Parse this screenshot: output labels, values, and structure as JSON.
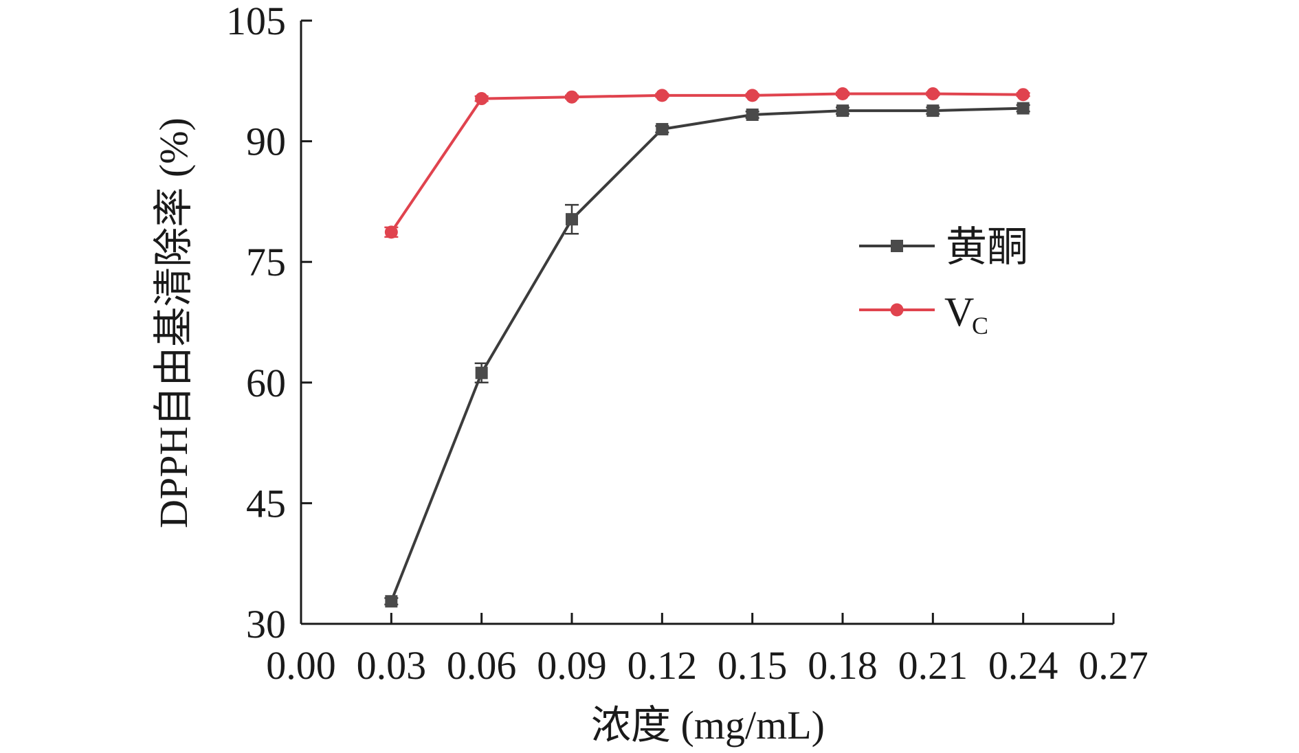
{
  "chart_data": {
    "type": "line",
    "title": "",
    "xlabel": "浓度 (mg/mL)",
    "ylabel": "DPPH自由基清除率 (%)",
    "xlim": [
      0.0,
      0.27
    ],
    "ylim": [
      30,
      105
    ],
    "xticks": [
      "0.00",
      "0.03",
      "0.06",
      "0.09",
      "0.12",
      "0.15",
      "0.18",
      "0.21",
      "0.24",
      "0.27"
    ],
    "yticks": [
      "30",
      "45",
      "60",
      "75",
      "90",
      "105"
    ],
    "x": [
      0.03,
      0.06,
      0.09,
      0.12,
      0.15,
      0.18,
      0.21,
      0.24
    ],
    "grid": false,
    "legend_position": "right",
    "series": [
      {
        "name": "黄酮",
        "marker": "square",
        "color": "#3c3c3c",
        "values": [
          32.8,
          61.2,
          80.3,
          91.5,
          93.3,
          93.8,
          93.8,
          94.1
        ],
        "errors": [
          0.4,
          1.2,
          1.8,
          0.4,
          0.4,
          0.4,
          0.4,
          0.4
        ]
      },
      {
        "name": "V",
        "name_sub": "C",
        "marker": "circle",
        "color": "#e0434e",
        "values": [
          78.7,
          95.3,
          95.5,
          95.7,
          95.7,
          95.9,
          95.9,
          95.8
        ],
        "errors": [
          0.6,
          0.3,
          0.2,
          0.2,
          0.2,
          0.2,
          0.2,
          0.2
        ]
      }
    ]
  }
}
